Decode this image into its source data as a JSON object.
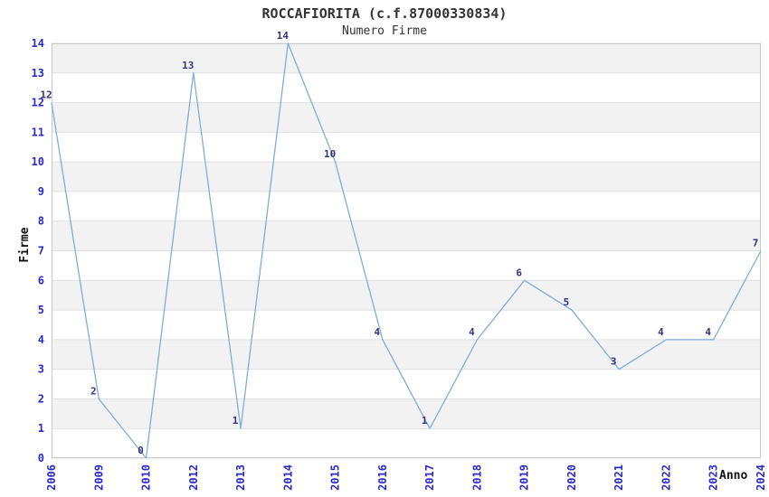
{
  "chart_data": {
    "type": "line",
    "title": "ROCCAFIORITA (c.f.87000330834)",
    "subtitle": "Numero Firme",
    "xlabel": "Anno",
    "ylabel": "Firme",
    "categories": [
      "2006",
      "2009",
      "2010",
      "2012",
      "2013",
      "2014",
      "2015",
      "2016",
      "2017",
      "2018",
      "2019",
      "2020",
      "2021",
      "2022",
      "2023",
      "2024"
    ],
    "values": [
      12,
      2,
      0,
      13,
      1,
      14,
      10,
      4,
      1,
      4,
      6,
      5,
      3,
      4,
      4,
      7
    ],
    "ylim": [
      0,
      14
    ],
    "y_tick_step": 1,
    "grid": "horizontal-bands",
    "legend": "none",
    "point_labels_visible": true,
    "colors": {
      "line": "#7fadda",
      "tick_label": "#2a2ac8",
      "point_label": "#333380",
      "title_text": "#333333",
      "band_gray": "#f2f2f2",
      "band_white": "#ffffff",
      "gridline": "#e0e0e0",
      "plot_border": "#c9c9c9"
    }
  }
}
